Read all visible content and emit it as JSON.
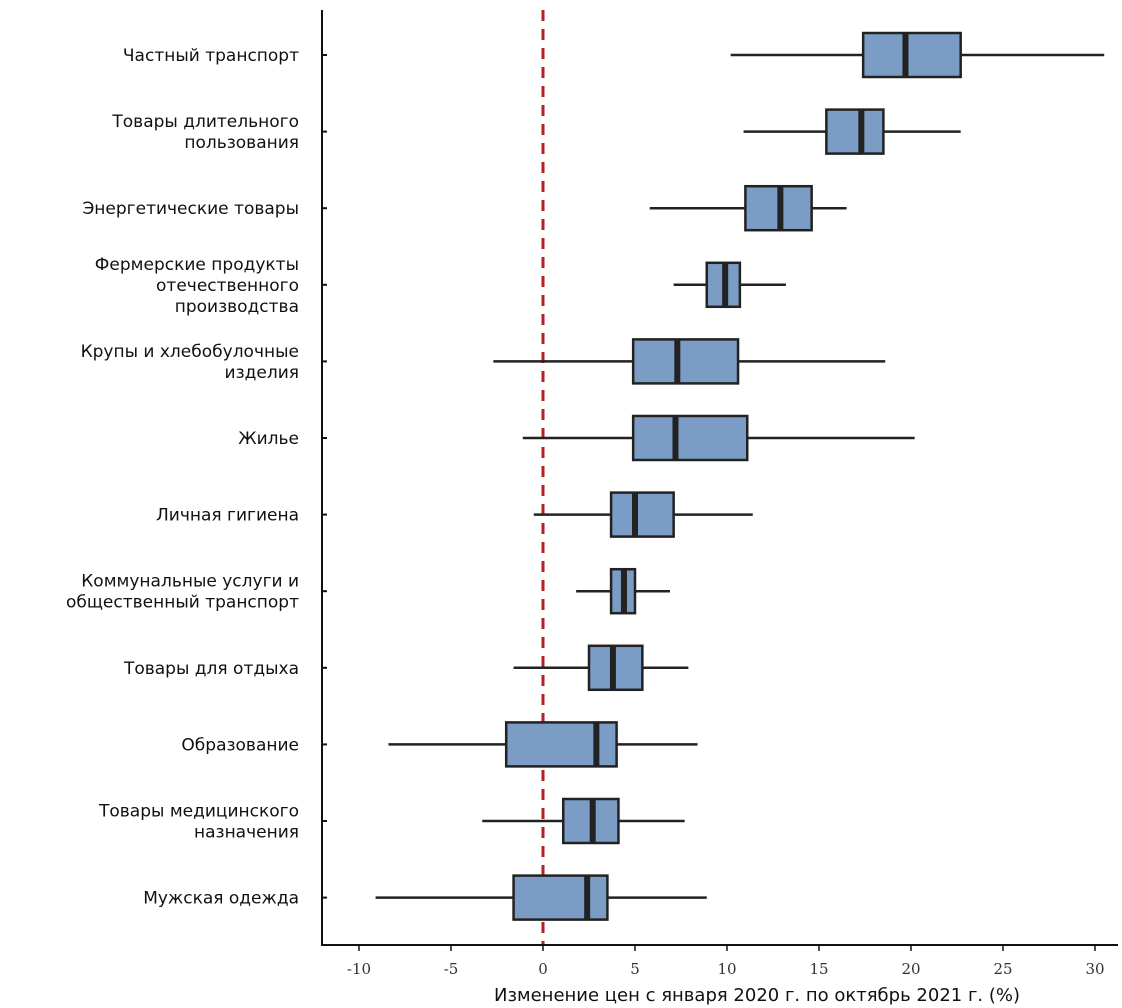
{
  "chart_data": {
    "type": "boxplot",
    "orientation": "horizontal",
    "title": "",
    "xlabel": "Изменение цен с января 2020 г. по октябрь 2021 г. (%)",
    "ylabel": "",
    "xlim": [
      -12,
      31
    ],
    "x_ticks": [
      -10,
      -5,
      0,
      5,
      10,
      15,
      20,
      25,
      30
    ],
    "x_tick_labels": [
      "-10",
      "-5",
      "0",
      "5",
      "10",
      "15",
      "20",
      "25",
      "30"
    ],
    "reference_line": {
      "x": 0,
      "style": "dashed",
      "color": "#b22222"
    },
    "box_color": "#7b9cc4",
    "line_color": "#222222",
    "grid": false,
    "categories": [
      {
        "label_lines": [
          "Частный транспорт"
        ],
        "whisker_low": 10.2,
        "q1": 17.4,
        "median": 19.7,
        "q3": 22.7,
        "whisker_high": 30.5
      },
      {
        "label_lines": [
          "Товары длительного",
          "пользования"
        ],
        "whisker_low": 10.9,
        "q1": 15.4,
        "median": 17.3,
        "q3": 18.5,
        "whisker_high": 22.7
      },
      {
        "label_lines": [
          "Энергетические товары"
        ],
        "whisker_low": 5.8,
        "q1": 11.0,
        "median": 12.9,
        "q3": 14.6,
        "whisker_high": 16.5
      },
      {
        "label_lines": [
          "Фермерские продукты",
          "отечественного",
          "производства"
        ],
        "whisker_low": 7.1,
        "q1": 8.9,
        "median": 9.9,
        "q3": 10.7,
        "whisker_high": 13.2
      },
      {
        "label_lines": [
          "Крупы и хлебобулочные",
          "изделия"
        ],
        "whisker_low": -2.7,
        "q1": 4.9,
        "median": 7.3,
        "q3": 10.6,
        "whisker_high": 18.6
      },
      {
        "label_lines": [
          "Жилье"
        ],
        "whisker_low": -1.1,
        "q1": 4.9,
        "median": 7.2,
        "q3": 11.1,
        "whisker_high": 20.2
      },
      {
        "label_lines": [
          "Личная гигиена"
        ],
        "whisker_low": -0.5,
        "q1": 3.7,
        "median": 5.0,
        "q3": 7.1,
        "whisker_high": 11.4
      },
      {
        "label_lines": [
          "Коммунальные услуги и",
          "общественный транспорт"
        ],
        "whisker_low": 1.8,
        "q1": 3.7,
        "median": 4.4,
        "q3": 5.0,
        "whisker_high": 6.9
      },
      {
        "label_lines": [
          "Товары для отдыха"
        ],
        "whisker_low": -1.6,
        "q1": 2.5,
        "median": 3.8,
        "q3": 5.4,
        "whisker_high": 7.9
      },
      {
        "label_lines": [
          "Образование"
        ],
        "whisker_low": -8.4,
        "q1": -2.0,
        "median": 2.9,
        "q3": 4.0,
        "whisker_high": 8.4
      },
      {
        "label_lines": [
          "Товары медицинского",
          "назначения"
        ],
        "whisker_low": -3.3,
        "q1": 1.1,
        "median": 2.7,
        "q3": 4.1,
        "whisker_high": 7.7
      },
      {
        "label_lines": [
          "Мужская одежда"
        ],
        "whisker_low": -9.1,
        "q1": -1.6,
        "median": 2.4,
        "q3": 3.5,
        "whisker_high": 8.9
      }
    ]
  }
}
